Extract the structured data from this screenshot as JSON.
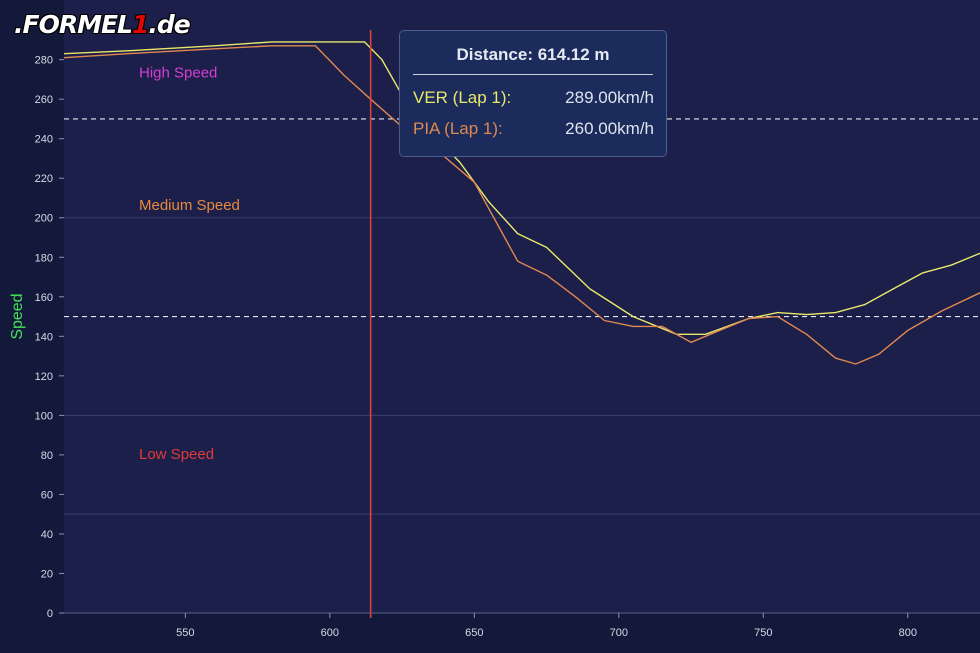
{
  "logo": {
    "prefix": ".FORMEL",
    "digit": "1",
    "suffix": ".de"
  },
  "tooltip": {
    "title": "Distance: 614.12 m",
    "rows": [
      {
        "label": "VER (Lap 1):",
        "value": "289.00km/h",
        "color": "#e8e86a"
      },
      {
        "label": "PIA (Lap 1):",
        "value": "260.00km/h",
        "color": "#e08850"
      }
    ]
  },
  "chart_data": {
    "type": "line",
    "ylabel": "Speed",
    "xlabel": "",
    "xlim": [
      508,
      825
    ],
    "ylim": [
      0,
      295
    ],
    "x_ticks": [
      550,
      600,
      650,
      700,
      750,
      800
    ],
    "y_ticks": [
      0,
      20,
      40,
      60,
      80,
      100,
      120,
      140,
      160,
      180,
      200,
      220,
      240,
      260,
      280
    ],
    "grid": true,
    "zones": [
      {
        "label": "High Speed",
        "label_y": 271,
        "color": "#d63ed6"
      },
      {
        "label": "Medium Speed",
        "label_y": 204,
        "color": "#e98a3e"
      },
      {
        "label": "Low Speed",
        "label_y": 78,
        "color": "#e23a3a"
      }
    ],
    "thresholds": [
      250,
      150
    ],
    "cursor_x": 614.12,
    "series": [
      {
        "name": "VER (Lap 1)",
        "color": "#e8e86a",
        "x": [
          508,
          530,
          560,
          580,
          600,
          605,
          612,
          618,
          625,
          635,
          645,
          655,
          665,
          675,
          690,
          705,
          720,
          730,
          745,
          755,
          765,
          775,
          785,
          795,
          805,
          815,
          825
        ],
        "y": [
          283,
          284.5,
          287,
          289,
          289,
          289,
          289,
          280,
          262,
          243,
          228,
          208,
          192,
          185,
          164,
          150,
          141,
          141,
          149,
          152,
          151,
          152,
          156,
          164,
          172,
          176,
          182
        ]
      },
      {
        "name": "PIA (Lap 1)",
        "color": "#e08850",
        "x": [
          508,
          530,
          560,
          580,
          595,
          605,
          614.12,
          625,
          638,
          650,
          665,
          675,
          685,
          695,
          705,
          715,
          725,
          735,
          745,
          755,
          765,
          775,
          782,
          790,
          800,
          812,
          825
        ],
        "y": [
          281,
          283,
          285.5,
          287,
          287,
          272,
          260,
          246,
          233,
          218,
          178,
          171,
          160,
          148,
          145,
          145,
          137,
          143,
          149,
          150,
          141,
          129,
          126,
          131,
          143,
          153,
          162
        ]
      }
    ]
  }
}
